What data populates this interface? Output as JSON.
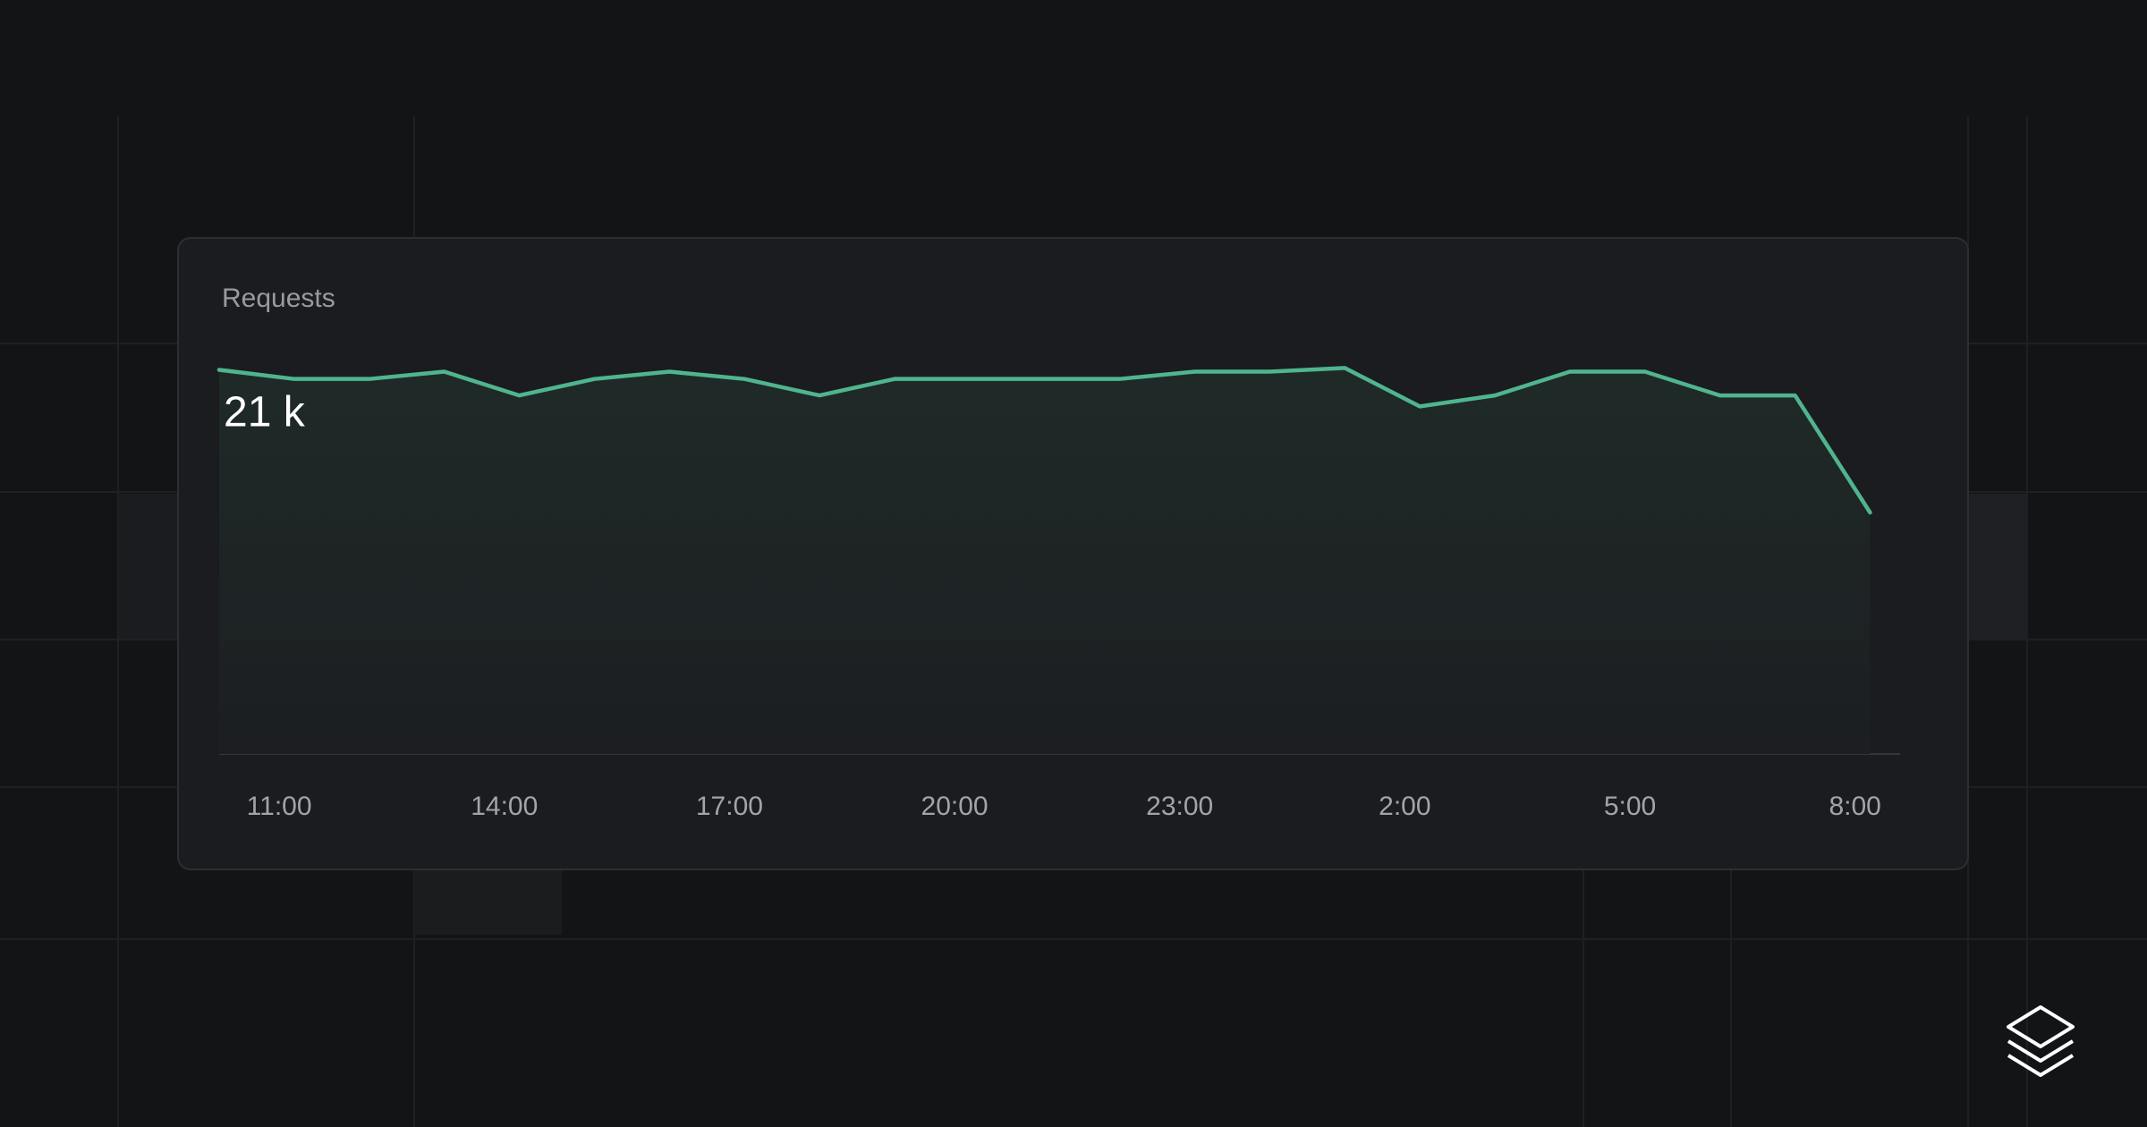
{
  "chart_data": {
    "type": "line",
    "title": "Requests",
    "annotation": "21 k",
    "x": [
      10.2,
      11.2,
      12.2,
      13.2,
      14.2,
      15.2,
      16.2,
      17.2,
      18.2,
      19.2,
      20.2,
      21.2,
      22.2,
      23.2,
      24.2,
      25.2,
      26.2,
      27.2,
      28.2,
      29.2,
      30.2,
      31.2,
      32.2
    ],
    "values": [
      21.0,
      20.5,
      20.5,
      20.9,
      19.6,
      20.5,
      20.9,
      20.5,
      19.6,
      20.5,
      20.5,
      20.5,
      20.5,
      20.9,
      20.9,
      21.1,
      19.0,
      19.6,
      20.9,
      20.9,
      19.6,
      19.6,
      13.2
    ],
    "color": "#4fb58f",
    "xlim": [
      10.2,
      32.6
    ],
    "ylim": [
      0,
      22
    ],
    "xticks": [
      {
        "value": 11,
        "label": "11:00"
      },
      {
        "value": 14,
        "label": "14:00"
      },
      {
        "value": 17,
        "label": "17:00"
      },
      {
        "value": 20,
        "label": "20:00"
      },
      {
        "value": 23,
        "label": "23:00"
      },
      {
        "value": 26,
        "label": "2:00"
      },
      {
        "value": 29,
        "label": "5:00"
      },
      {
        "value": 32,
        "label": "8:00"
      }
    ]
  }
}
